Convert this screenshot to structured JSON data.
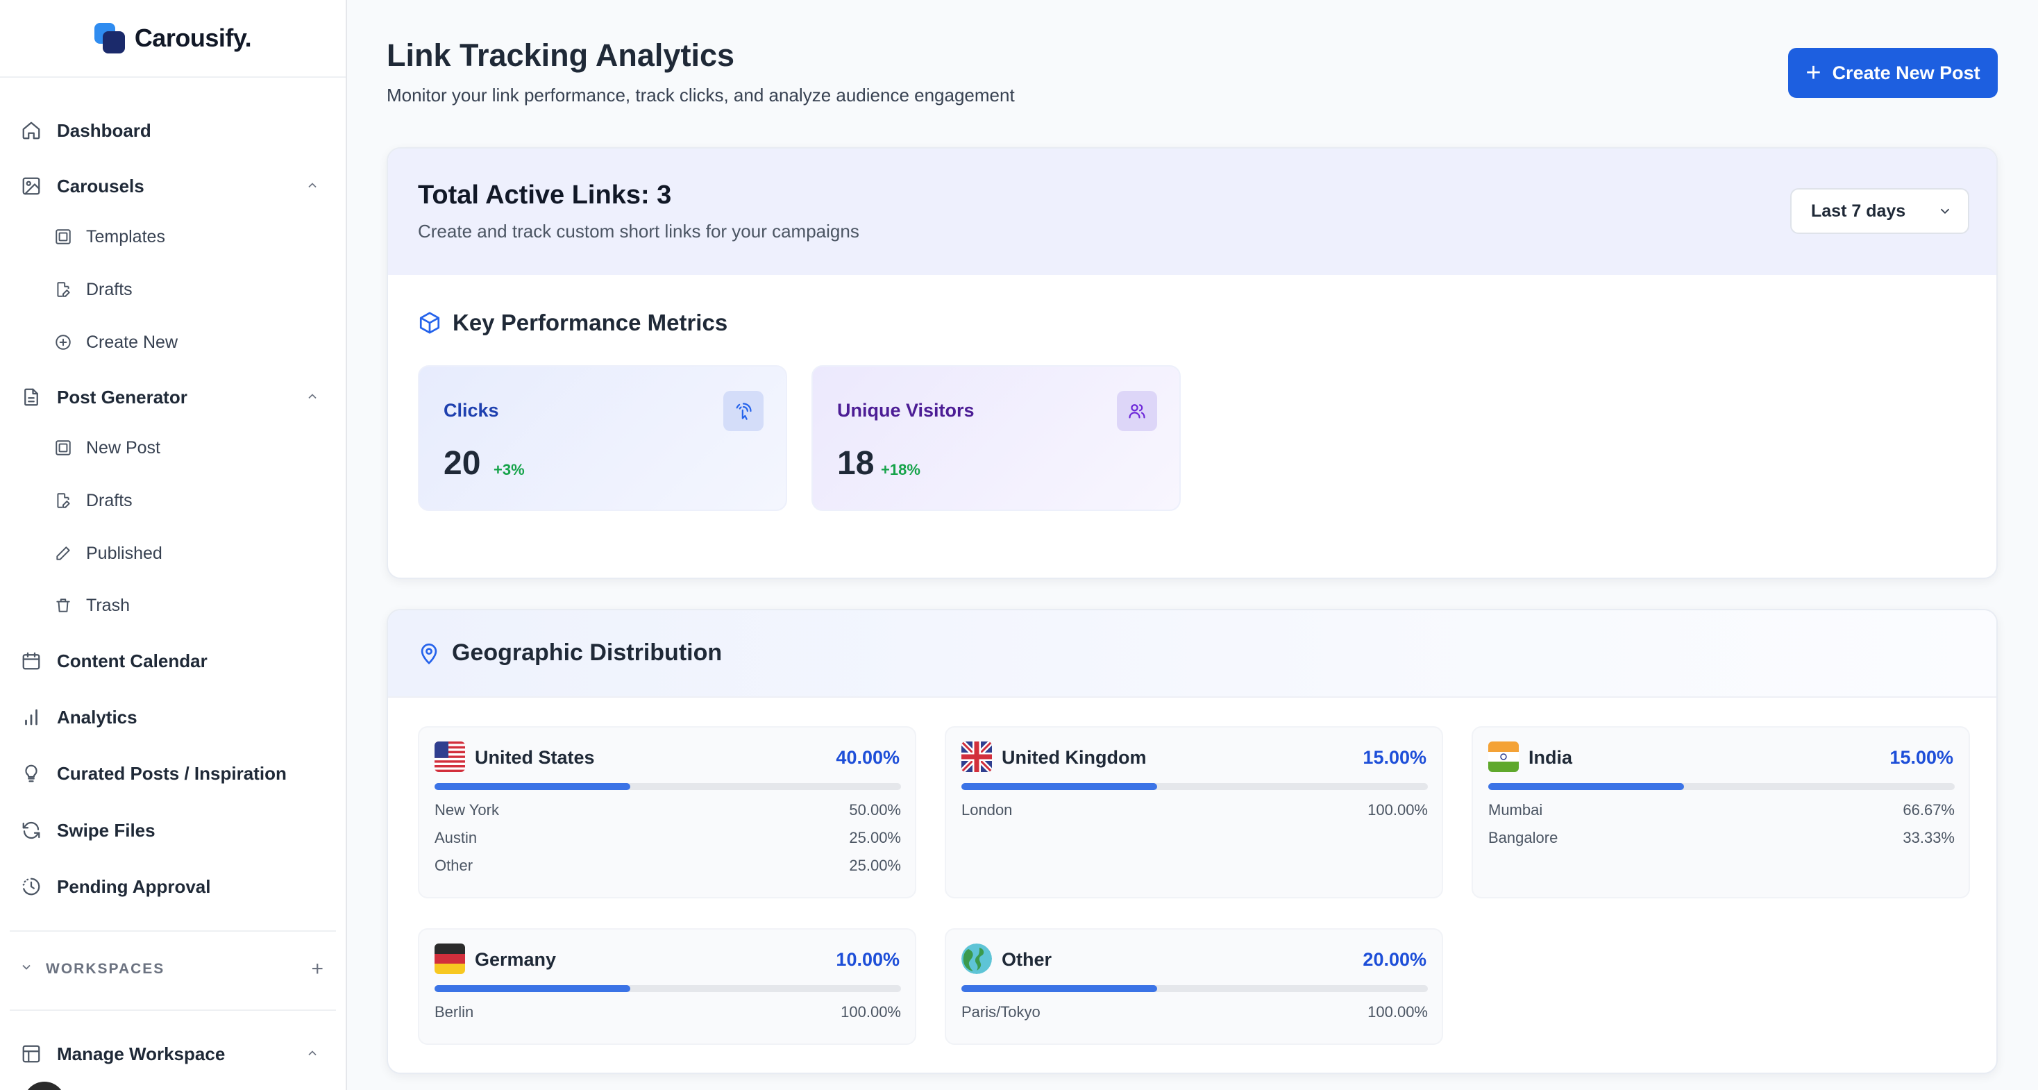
{
  "brand": {
    "name": "Carousify."
  },
  "sidebar": {
    "dashboard": "Dashboard",
    "carousels": {
      "label": "Carousels",
      "items": [
        "Templates",
        "Drafts",
        "Create New"
      ]
    },
    "post_generator": {
      "label": "Post Generator",
      "items": [
        "New Post",
        "Drafts",
        "Published",
        "Trash"
      ]
    },
    "content_calendar": "Content Calendar",
    "analytics": "Analytics",
    "curated_posts": "Curated Posts / Inspiration",
    "swipe_files": "Swipe Files",
    "pending_approval": "Pending Approval",
    "workspaces": "WORKSPACES",
    "manage_workspace": "Manage Workspace"
  },
  "header": {
    "title": "Link Tracking Analytics",
    "subtitle": "Monitor your link performance, track clicks, and analyze audience engagement",
    "create_button": "Create New Post"
  },
  "summary": {
    "title": "Total Active Links: 3",
    "subtitle": "Create and track custom short links for your campaigns",
    "range": "Last 7 days"
  },
  "metrics": {
    "title": "Key Performance Metrics",
    "clicks": {
      "label": "Clicks",
      "value": "20",
      "change": "+3%"
    },
    "visitors": {
      "label": "Unique Visitors",
      "value": "18",
      "change": "+18%"
    }
  },
  "geo": {
    "title": "Geographic Distribution",
    "countries": [
      {
        "name": "United States",
        "percent": "40.00%",
        "bar": 0.42,
        "cities": [
          {
            "name": "New York",
            "pct": "50.00%"
          },
          {
            "name": "Austin",
            "pct": "25.00%"
          },
          {
            "name": "Other",
            "pct": "25.00%"
          }
        ]
      },
      {
        "name": "United Kingdom",
        "percent": "15.00%",
        "bar": 0.42,
        "cities": [
          {
            "name": "London",
            "pct": "100.00%"
          }
        ]
      },
      {
        "name": "India",
        "percent": "15.00%",
        "bar": 0.42,
        "cities": [
          {
            "name": "Mumbai",
            "pct": "66.67%"
          },
          {
            "name": "Bangalore",
            "pct": "33.33%"
          }
        ]
      },
      {
        "name": "Germany",
        "percent": "10.00%",
        "bar": 0.42,
        "cities": [
          {
            "name": "Berlin",
            "pct": "100.00%"
          }
        ]
      },
      {
        "name": "Other",
        "percent": "20.00%",
        "bar": 0.42,
        "cities": [
          {
            "name": "Paris/Tokyo",
            "pct": "100.00%"
          }
        ]
      }
    ]
  },
  "colors": {
    "accent": "#1d5fe0",
    "positive": "#16a34a",
    "bar": "#3b73e6"
  }
}
